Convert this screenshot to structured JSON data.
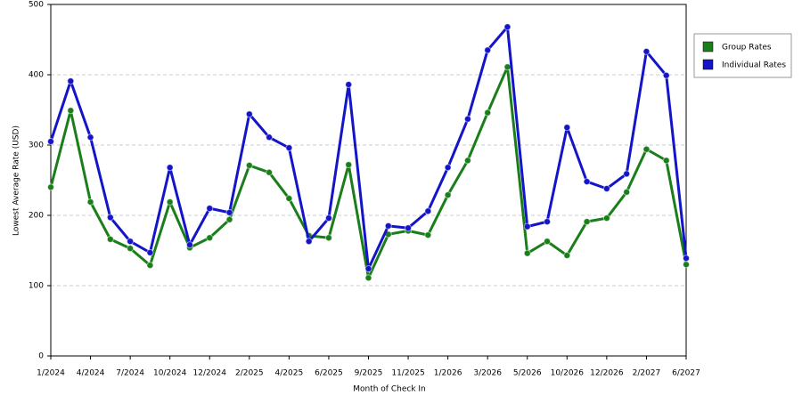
{
  "chart_data": {
    "type": "line",
    "x_label": "Month of Check In",
    "y_label": "Lowest Average Rate (USD)",
    "categories": [
      "1/2024",
      null,
      "4/2024",
      null,
      "7/2024",
      null,
      "10/2024",
      null,
      "12/2024",
      null,
      "2/2025",
      null,
      "4/2025",
      null,
      "6/2025",
      null,
      "9/2025",
      null,
      "11/2025",
      null,
      "1/2026",
      null,
      "3/2026",
      null,
      "5/2026",
      null,
      "10/2026",
      null,
      "12/2026",
      null,
      "2/2027",
      null,
      "6/2027"
    ],
    "series": [
      {
        "name": "Group Rates",
        "color": "#1a7f1a",
        "values": [
          240,
          349,
          219,
          166,
          153,
          129,
          219,
          154,
          168,
          194,
          271,
          261,
          224,
          171,
          168,
          272,
          111,
          173,
          178,
          172,
          229,
          278,
          346,
          411,
          146,
          163,
          143,
          191,
          196,
          233,
          294,
          278,
          130
        ]
      },
      {
        "name": "Individual Rates",
        "color": "#1414c8",
        "values": [
          305,
          391,
          311,
          197,
          163,
          147,
          268,
          158,
          210,
          204,
          344,
          311,
          296,
          163,
          196,
          386,
          124,
          185,
          182,
          206,
          268,
          337,
          435,
          468,
          184,
          191,
          325,
          248,
          238,
          259,
          433,
          399,
          139
        ]
      }
    ],
    "ylim": [
      0,
      500
    ],
    "yticks": [
      0,
      100,
      200,
      300,
      400,
      500
    ],
    "grid": true,
    "legend": "right"
  }
}
